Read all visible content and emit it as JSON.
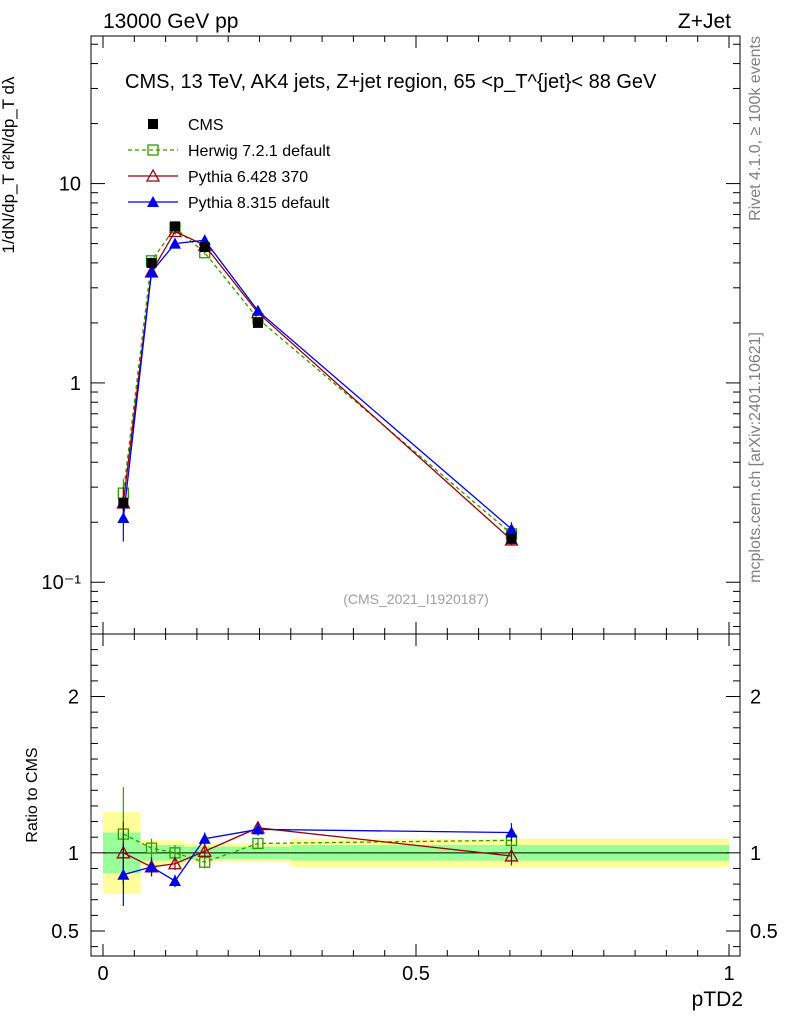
{
  "header": {
    "energy_label": "13000 GeV pp",
    "process_label": "Z+Jet"
  },
  "side_text": {
    "rivet": "Rivet 4.1.0, ≥ 100k events",
    "source": "mcplots.cern.ch [arXiv:2401.10621]"
  },
  "chart_data": {
    "type": "line",
    "title": "CMS, 13 TeV, AK4 jets, Z+jet region, 65 <p_T^{jet}< 88 GeV",
    "xlabel": "pTD2",
    "ylabel": "1/dN/dp_T d²N/dp_T dλ",
    "ratio_ylabel": "Ratio to CMS",
    "analysis_id": "(CMS_2021_I1920187)",
    "xlim": [
      0,
      1
    ],
    "ylim": [
      0.055,
      55
    ],
    "yscale": "log",
    "ratio_ylim": [
      0.34,
      2.4
    ],
    "x": [
      0.0325,
      0.0775,
      0.115,
      0.1625,
      0.2475,
      0.6525
    ],
    "x_ticks": [
      "0",
      "0.5",
      "1"
    ],
    "y_ticks": [
      "10⁻¹",
      "1",
      "10"
    ],
    "ratio_y_ticks": [
      "0.5",
      "1",
      "2"
    ],
    "series": [
      {
        "name": "CMS",
        "color": "#000000",
        "marker": "square-filled",
        "values": [
          0.25,
          4.0,
          6.1,
          4.8,
          2.0,
          0.165
        ],
        "errors": [
          0.02,
          0.2,
          0.25,
          0.2,
          0.08,
          0.01
        ]
      },
      {
        "name": "Herwig 7.2.1 default",
        "color": "#339900",
        "marker": "square-open",
        "dashed": true,
        "values": [
          0.28,
          4.1,
          6.0,
          4.5,
          2.1,
          0.175
        ],
        "errors": [
          0.05,
          0.15,
          0.15,
          0.1,
          0.05,
          0.01
        ],
        "ratio": [
          1.12,
          1.03,
          1.0,
          0.94,
          1.06,
          1.08
        ],
        "ratio_errors": [
          0.3,
          0.06,
          0.05,
          0.04,
          0.03,
          0.05
        ]
      },
      {
        "name": "Pythia 6.428 370",
        "color": "#99000d",
        "marker": "triangle-open",
        "values": [
          0.25,
          3.6,
          5.75,
          4.9,
          2.25,
          0.163
        ],
        "errors": [
          0.05,
          0.2,
          0.2,
          0.15,
          0.07,
          0.01
        ],
        "ratio": [
          1.0,
          0.91,
          0.93,
          1.01,
          1.16,
          0.98
        ],
        "ratio_errors": [
          0.2,
          0.06,
          0.04,
          0.04,
          0.04,
          0.06
        ]
      },
      {
        "name": "Pythia 8.315 default",
        "color": "#0000e6",
        "marker": "triangle-filled",
        "values": [
          0.21,
          3.6,
          5.0,
          5.2,
          2.3,
          0.185
        ],
        "errors": [
          0.05,
          0.2,
          0.2,
          0.15,
          0.07,
          0.015
        ],
        "ratio": [
          0.86,
          0.91,
          0.82,
          1.09,
          1.15,
          1.13
        ],
        "ratio_errors": [
          0.2,
          0.06,
          0.04,
          0.04,
          0.04,
          0.06
        ]
      }
    ],
    "cms_bands": {
      "edges": [
        0,
        0.06,
        0.09,
        0.13,
        0.2,
        0.3,
        1.0
      ],
      "inner": [
        0.13,
        0.05,
        0.05,
        0.04,
        0.04,
        0.05
      ],
      "outer": [
        0.26,
        0.08,
        0.08,
        0.06,
        0.06,
        0.09
      ],
      "inner_color": "#99ff99",
      "outer_color": "#ffff99"
    }
  }
}
